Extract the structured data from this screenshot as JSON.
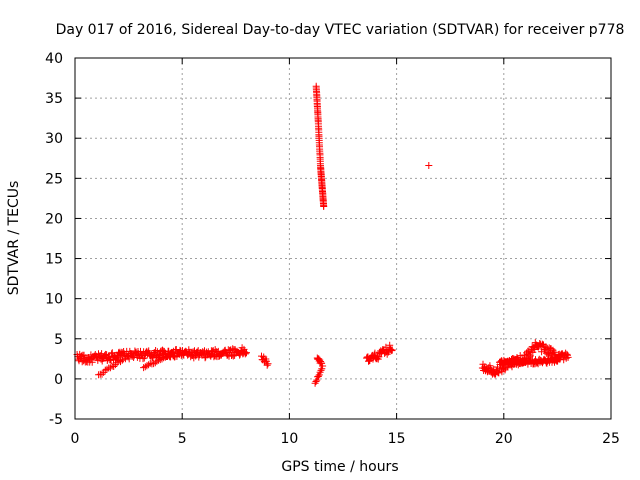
{
  "chart_data": {
    "type": "scatter",
    "title": "Day 017 of 2016, Sidereal Day-to-day VTEC variation (SDTVAR) for receiver p778",
    "xlabel": "GPS time / hours",
    "ylabel": "SDTVAR / TECUs",
    "xlim": [
      0,
      25
    ],
    "ylim": [
      -5,
      40
    ],
    "xticks": [
      0,
      5,
      10,
      15,
      20,
      25
    ],
    "yticks": [
      -5,
      0,
      5,
      10,
      15,
      20,
      25,
      30,
      35,
      40
    ],
    "grid": true,
    "marker": "+",
    "color": "#ff0000",
    "series": [
      {
        "name": "SDTVAR",
        "segments": [
          {
            "x0": 0.1,
            "x1": 8.0,
            "kind": "band",
            "trend": [
              [
                0.1,
                2.8
              ],
              [
                0.5,
                2.4
              ],
              [
                1.0,
                2.6
              ],
              [
                2.0,
                2.9
              ],
              [
                3.0,
                3.0
              ],
              [
                4.0,
                3.1
              ],
              [
                5.0,
                3.2
              ],
              [
                6.0,
                3.0
              ],
              [
                7.0,
                3.3
              ],
              [
                8.0,
                3.4
              ]
            ],
            "spread": 1.0
          },
          {
            "x0": 1.1,
            "x1": 2.2,
            "kind": "line",
            "trend": [
              [
                1.1,
                0.4
              ],
              [
                2.2,
                2.4
              ]
            ],
            "spread": 0.3
          },
          {
            "x0": 3.2,
            "x1": 4.6,
            "kind": "line",
            "trend": [
              [
                3.2,
                1.4
              ],
              [
                4.6,
                3.3
              ]
            ],
            "spread": 0.3
          },
          {
            "x0": 8.7,
            "x1": 9.0,
            "kind": "band",
            "trend": [
              [
                8.7,
                2.8
              ],
              [
                9.0,
                1.9
              ]
            ],
            "spread": 0.6
          },
          {
            "x0": 11.2,
            "x1": 11.55,
            "kind": "line",
            "trend": [
              [
                11.2,
                -0.5
              ],
              [
                11.55,
                1.5
              ]
            ],
            "spread": 0.3
          },
          {
            "x0": 11.3,
            "x1": 11.5,
            "kind": "band",
            "trend": [
              [
                11.3,
                2.5
              ],
              [
                11.5,
                2.0
              ]
            ],
            "spread": 0.4
          },
          {
            "x0": 11.25,
            "x1": 11.6,
            "kind": "line",
            "trend": [
              [
                11.25,
                36.5
              ],
              [
                11.35,
                32.0
              ],
              [
                11.45,
                26.5
              ],
              [
                11.6,
                21.5
              ]
            ],
            "spread": 0.1
          },
          {
            "x0": 16.5,
            "x1": 16.5,
            "kind": "point",
            "trend": [
              [
                16.5,
                26.6
              ]
            ],
            "spread": 0.0
          },
          {
            "x0": 13.6,
            "x1": 14.8,
            "kind": "band",
            "trend": [
              [
                13.6,
                2.2
              ],
              [
                14.2,
                3.0
              ],
              [
                14.8,
                3.9
              ]
            ],
            "spread": 1.0
          },
          {
            "x0": 19.0,
            "x1": 23.0,
            "kind": "band",
            "trend": [
              [
                19.0,
                1.6
              ],
              [
                19.6,
                1.0
              ],
              [
                20.2,
                1.8
              ],
              [
                21.0,
                2.6
              ],
              [
                21.5,
                4.2
              ],
              [
                22.0,
                3.6
              ],
              [
                22.5,
                3.0
              ],
              [
                23.0,
                2.6
              ]
            ],
            "spread": 1.1
          },
          {
            "x0": 19.8,
            "x1": 22.6,
            "kind": "band",
            "trend": [
              [
                19.8,
                2.0
              ],
              [
                20.5,
                2.2
              ],
              [
                21.5,
                2.1
              ],
              [
                22.6,
                2.4
              ]
            ],
            "spread": 0.6
          }
        ]
      }
    ]
  }
}
